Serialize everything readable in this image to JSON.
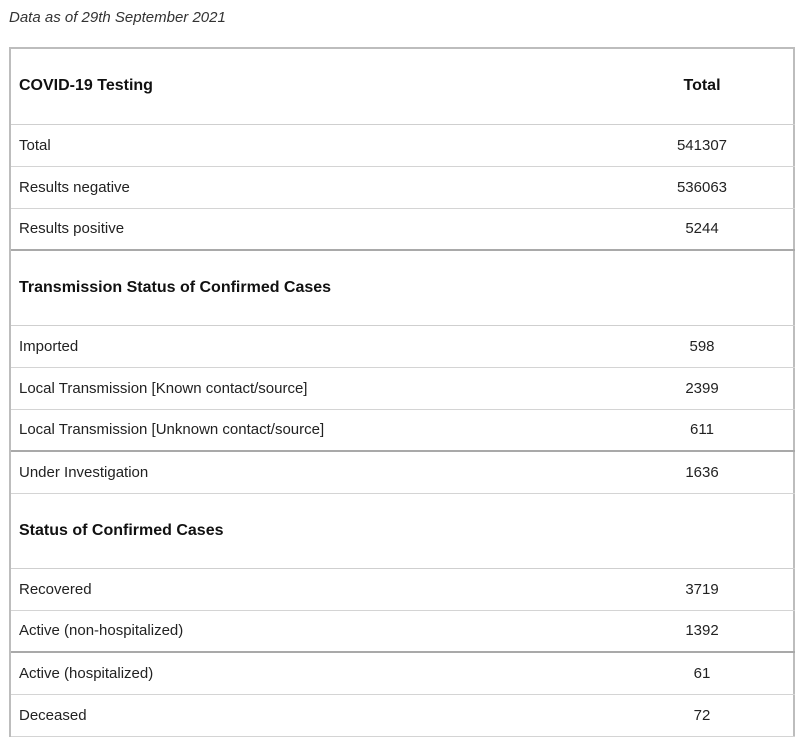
{
  "caption": "Data as of 29th September 2021",
  "table": {
    "header": {
      "label": "COVID-19 Testing",
      "value_header": "Total"
    },
    "testing_rows": [
      {
        "label": "Total",
        "value": "541307"
      },
      {
        "label": "Results negative",
        "value": "536063"
      },
      {
        "label": "Results positive",
        "value": "5244"
      }
    ],
    "transmission_section": {
      "title": "Transmission Status of Confirmed Cases",
      "rows": [
        {
          "label": "Imported",
          "value": "598"
        },
        {
          "label": "Local Transmission [Known contact/source]",
          "value": "2399"
        },
        {
          "label": "Local Transmission [Unknown contact/source]",
          "value": "611"
        },
        {
          "label": "Under Investigation",
          "value": "1636"
        }
      ]
    },
    "status_section": {
      "title": "Status of Confirmed Cases",
      "rows": [
        {
          "label": "Recovered",
          "value": "3719"
        },
        {
          "label": "Active (non-hospitalized)",
          "value": "1392"
        },
        {
          "label": "Active (hospitalized)",
          "value": "61"
        },
        {
          "label": "Deceased",
          "value": "72"
        }
      ]
    }
  }
}
